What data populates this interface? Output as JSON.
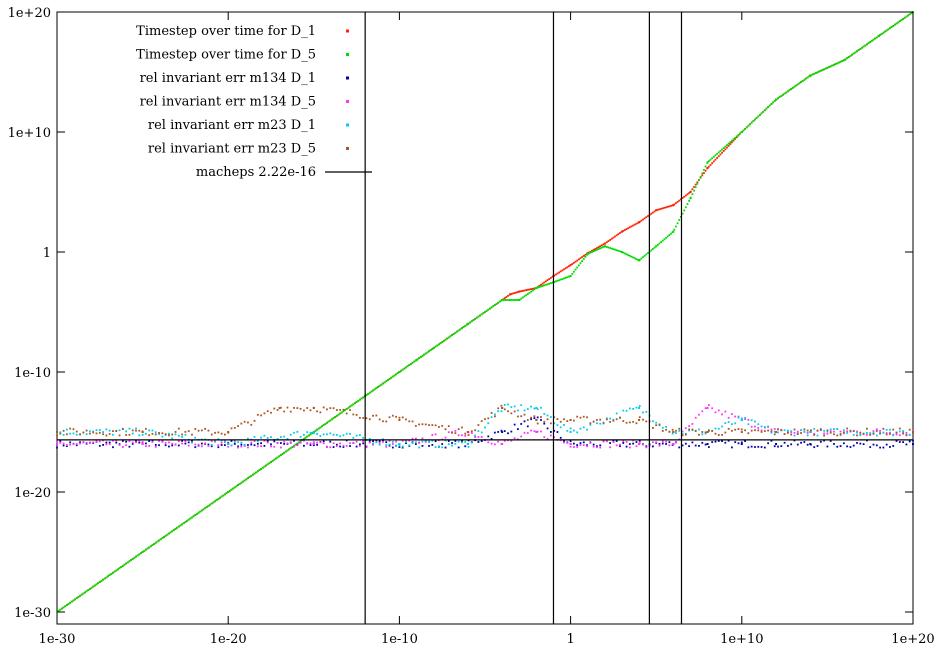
{
  "chart_data": {
    "type": "scatter",
    "title": "",
    "xlabel": "",
    "ylabel": "",
    "xscale": "log",
    "yscale": "log",
    "xlim": [
      1e-30,
      1e+20
    ],
    "ylim": [
      1e-31,
      1e+20
    ],
    "grid": false,
    "legend_position": "top-left",
    "x_ticks": [
      {
        "value": 1e-30,
        "label": "1e-30"
      },
      {
        "value": 1e-20,
        "label": "1e-20"
      },
      {
        "value": 1e-10,
        "label": "1e-10"
      },
      {
        "value": 1,
        "label": "1"
      },
      {
        "value": 10000000000.0,
        "label": "1e+10"
      },
      {
        "value": 1e+20,
        "label": "1e+20"
      }
    ],
    "y_ticks": [
      {
        "value": 1e-30,
        "label": "1e-30"
      },
      {
        "value": 1e-20,
        "label": "1e-20"
      },
      {
        "value": 1e-10,
        "label": "1e-10"
      },
      {
        "value": 1,
        "label": "1"
      },
      {
        "value": 10000000000.0,
        "label": "1e+10"
      },
      {
        "value": 1e+20,
        "label": "1e+20"
      }
    ],
    "vertical_lines": [
      1e-12,
      0.1,
      40000.0,
      3000000.0
    ],
    "series": [
      {
        "name": "Timestep over time for D_1",
        "color": "#ff2200",
        "points": [
          [
            1e-30,
            1e-30
          ],
          [
            1e-25,
            1e-25
          ],
          [
            1e-20,
            1e-20
          ],
          [
            1e-15,
            1e-15
          ],
          [
            1e-12,
            1e-12
          ],
          [
            1e-10,
            1e-10
          ],
          [
            1e-08,
            1e-08
          ],
          [
            1e-06,
            1e-06
          ],
          [
            0.0001,
            0.0001
          ],
          [
            0.0003,
            0.0003
          ],
          [
            0.001,
            0.0005
          ],
          [
            0.01,
            0.001
          ],
          [
            0.1,
            0.01
          ],
          [
            1,
            0.08
          ],
          [
            10,
            0.8
          ],
          [
            100,
            5
          ],
          [
            1000.0,
            50
          ],
          [
            10000.0,
            300
          ],
          [
            100000.0,
            3000
          ],
          [
            1000000.0,
            8000
          ],
          [
            10000000.0,
            100000.0
          ],
          [
            100000000.0,
            10000000.0
          ],
          [
            10000000000.0,
            10000000000.0
          ],
          [
            1000000000000.0,
            5000000000000.0
          ],
          [
            100000000000000.0,
            500000000000000.0
          ],
          [
            1e+16,
            1e+16
          ],
          [
            1e+18,
            1e+18
          ],
          [
            1e+20,
            1e+20
          ]
        ]
      },
      {
        "name": "Timestep over time for D_5",
        "color": "#00dd00",
        "points": [
          [
            1e-30,
            1e-30
          ],
          [
            1e-25,
            1e-25
          ],
          [
            1e-20,
            1e-20
          ],
          [
            1e-15,
            1e-15
          ],
          [
            1e-12,
            1e-12
          ],
          [
            1e-10,
            1e-10
          ],
          [
            1e-09,
            1e-09
          ],
          [
            1e-08,
            1e-08
          ],
          [
            1e-06,
            1e-06
          ],
          [
            0.0001,
            0.0001
          ],
          [
            0.001,
            0.0001
          ],
          [
            0.01,
            0.001
          ],
          [
            0.1,
            0.003
          ],
          [
            1,
            0.01
          ],
          [
            10,
            0.7
          ],
          [
            100,
            3
          ],
          [
            1000.0,
            1
          ],
          [
            10000.0,
            0.2
          ],
          [
            100000.0,
            3
          ],
          [
            1000000.0,
            50
          ],
          [
            10000000.0,
            30000.0
          ],
          [
            100000000.0,
            30000000.0
          ],
          [
            10000000000.0,
            10000000000.0
          ],
          [
            1000000000000.0,
            5000000000000.0
          ],
          [
            100000000000000.0,
            500000000000000.0
          ],
          [
            1e+16,
            1e+16
          ],
          [
            1e+18,
            1e+18
          ],
          [
            1e+20,
            1e+20
          ]
        ]
      },
      {
        "name": "rel invariant err m134 D_1",
        "color": "#0000aa",
        "points": [
          [
            1e-30,
            1e-16
          ],
          [
            1e-25,
            1e-16
          ],
          [
            1e-20,
            1e-16
          ],
          [
            1e-15,
            1e-16
          ],
          [
            1e-10,
            1e-16
          ],
          [
            1e-06,
            1e-16
          ],
          [
            0.0001,
            1e-15
          ],
          [
            0.01,
            1e-14
          ],
          [
            1,
            1e-16
          ],
          [
            10000.0,
            1e-16
          ],
          [
            1000000.0,
            1e-16
          ],
          [
            100000000.0,
            1e-16
          ],
          [
            10000000000.0,
            1e-16
          ],
          [
            1000000000000.0,
            1e-16
          ],
          [
            100000000000000.0,
            1e-16
          ],
          [
            1e+20,
            1e-16
          ]
        ]
      },
      {
        "name": "rel invariant err m134 D_5",
        "color": "#ff33ff",
        "points": [
          [
            1e-30,
            1e-16
          ],
          [
            1e-25,
            1e-16
          ],
          [
            1e-20,
            1e-16
          ],
          [
            1e-15,
            1e-16
          ],
          [
            1e-10,
            1e-16
          ],
          [
            1e-06,
            1e-15
          ],
          [
            0.0001,
            1e-16
          ],
          [
            0.01,
            1e-15
          ],
          [
            1,
            1e-16
          ],
          [
            10000.0,
            1e-16
          ],
          [
            1000000.0,
            1e-16
          ],
          [
            100000000.0,
            1e-13
          ],
          [
            10000000000.0,
            1e-14
          ],
          [
            1000000000000.0,
            1e-15
          ],
          [
            100000000000000.0,
            1e-15
          ],
          [
            1e+20,
            1e-15
          ]
        ]
      },
      {
        "name": "rel invariant err m23 D_1",
        "color": "#00ccee",
        "points": [
          [
            1e-30,
            1e-15
          ],
          [
            1e-25,
            1e-15
          ],
          [
            1e-20,
            1e-16
          ],
          [
            1e-15,
            1e-15
          ],
          [
            1e-10,
            1e-16
          ],
          [
            1e-06,
            1e-16
          ],
          [
            0.0001,
            1e-13
          ],
          [
            0.01,
            1e-13
          ],
          [
            1,
            1e-15
          ],
          [
            10000.0,
            1e-13
          ],
          [
            1000000.0,
            1e-15
          ],
          [
            100000000.0,
            1e-15
          ],
          [
            10000000000.0,
            1e-14
          ],
          [
            1000000000000.0,
            1e-15
          ],
          [
            100000000000000.0,
            1e-15
          ],
          [
            1e+20,
            1e-15
          ]
        ]
      },
      {
        "name": "rel invariant err m23 D_5",
        "color": "#aa5522",
        "points": [
          [
            1e-30,
            1e-15
          ],
          [
            1e-25,
            1e-15
          ],
          [
            1e-20,
            1e-15
          ],
          [
            1e-17,
            1e-13
          ],
          [
            1e-15,
            1e-13
          ],
          [
            1e-10,
            1e-14
          ],
          [
            1e-06,
            1e-15
          ],
          [
            0.0001,
            1e-13
          ],
          [
            0.01,
            1e-14
          ],
          [
            1,
            1e-14
          ],
          [
            10000.0,
            1e-14
          ],
          [
            1000000.0,
            1e-15
          ],
          [
            100000000.0,
            1e-15
          ],
          [
            10000000000.0,
            1e-15
          ],
          [
            1000000000000.0,
            1e-15
          ],
          [
            1e+20,
            1e-15
          ]
        ]
      },
      {
        "name": "macheps 2.22e-16",
        "color": "#000000",
        "style": "line",
        "points": [
          [
            1e-30,
            2.22e-16
          ],
          [
            1e+20,
            2.22e-16
          ]
        ]
      }
    ]
  }
}
